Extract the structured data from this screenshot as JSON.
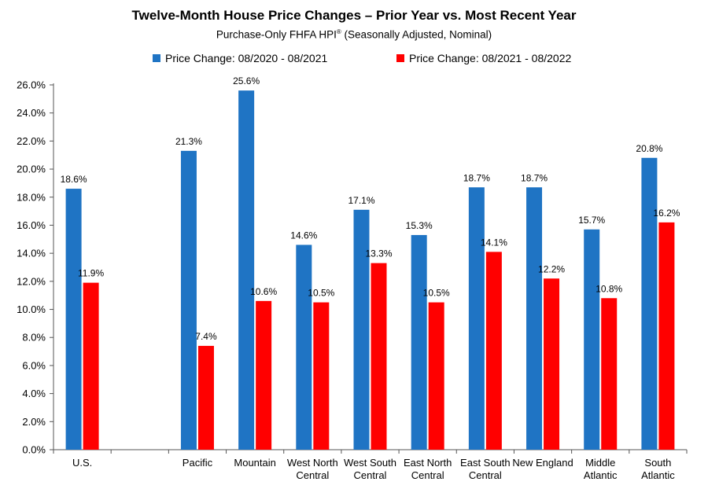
{
  "chart_data": {
    "type": "bar",
    "title": "Twelve-Month House Price Changes – Prior Year vs. Most Recent Year",
    "subtitle": "Purchase-Only FHFA HPI",
    "subtitle_mark": "®",
    "subtitle_tail": " (Seasonally Adjusted, Nominal)",
    "categories": [
      [
        "U.S."
      ],
      [
        ""
      ],
      [
        "Pacific"
      ],
      [
        "Mountain"
      ],
      [
        "West North",
        "Central"
      ],
      [
        "West South",
        "Central"
      ],
      [
        "East North",
        "Central"
      ],
      [
        "East South",
        "Central"
      ],
      [
        "New England"
      ],
      [
        "Middle",
        "Atlantic"
      ],
      [
        "South",
        "Atlantic"
      ]
    ],
    "series": [
      {
        "name": "Price Change:  08/2020 - 08/2021",
        "color": "#1f74c4",
        "values": [
          18.6,
          null,
          21.3,
          25.6,
          14.6,
          17.1,
          15.3,
          18.7,
          18.7,
          15.7,
          20.8
        ]
      },
      {
        "name": "Price Change:  08/2021 - 08/2022",
        "color": "#ff0000",
        "values": [
          11.9,
          null,
          7.4,
          10.6,
          10.5,
          13.3,
          10.5,
          14.1,
          12.2,
          10.8,
          16.2
        ]
      }
    ],
    "ylim": [
      0,
      26
    ],
    "ytick_step": 2,
    "yformat": "percent_1dp",
    "grid": false,
    "legend_position": "top"
  }
}
